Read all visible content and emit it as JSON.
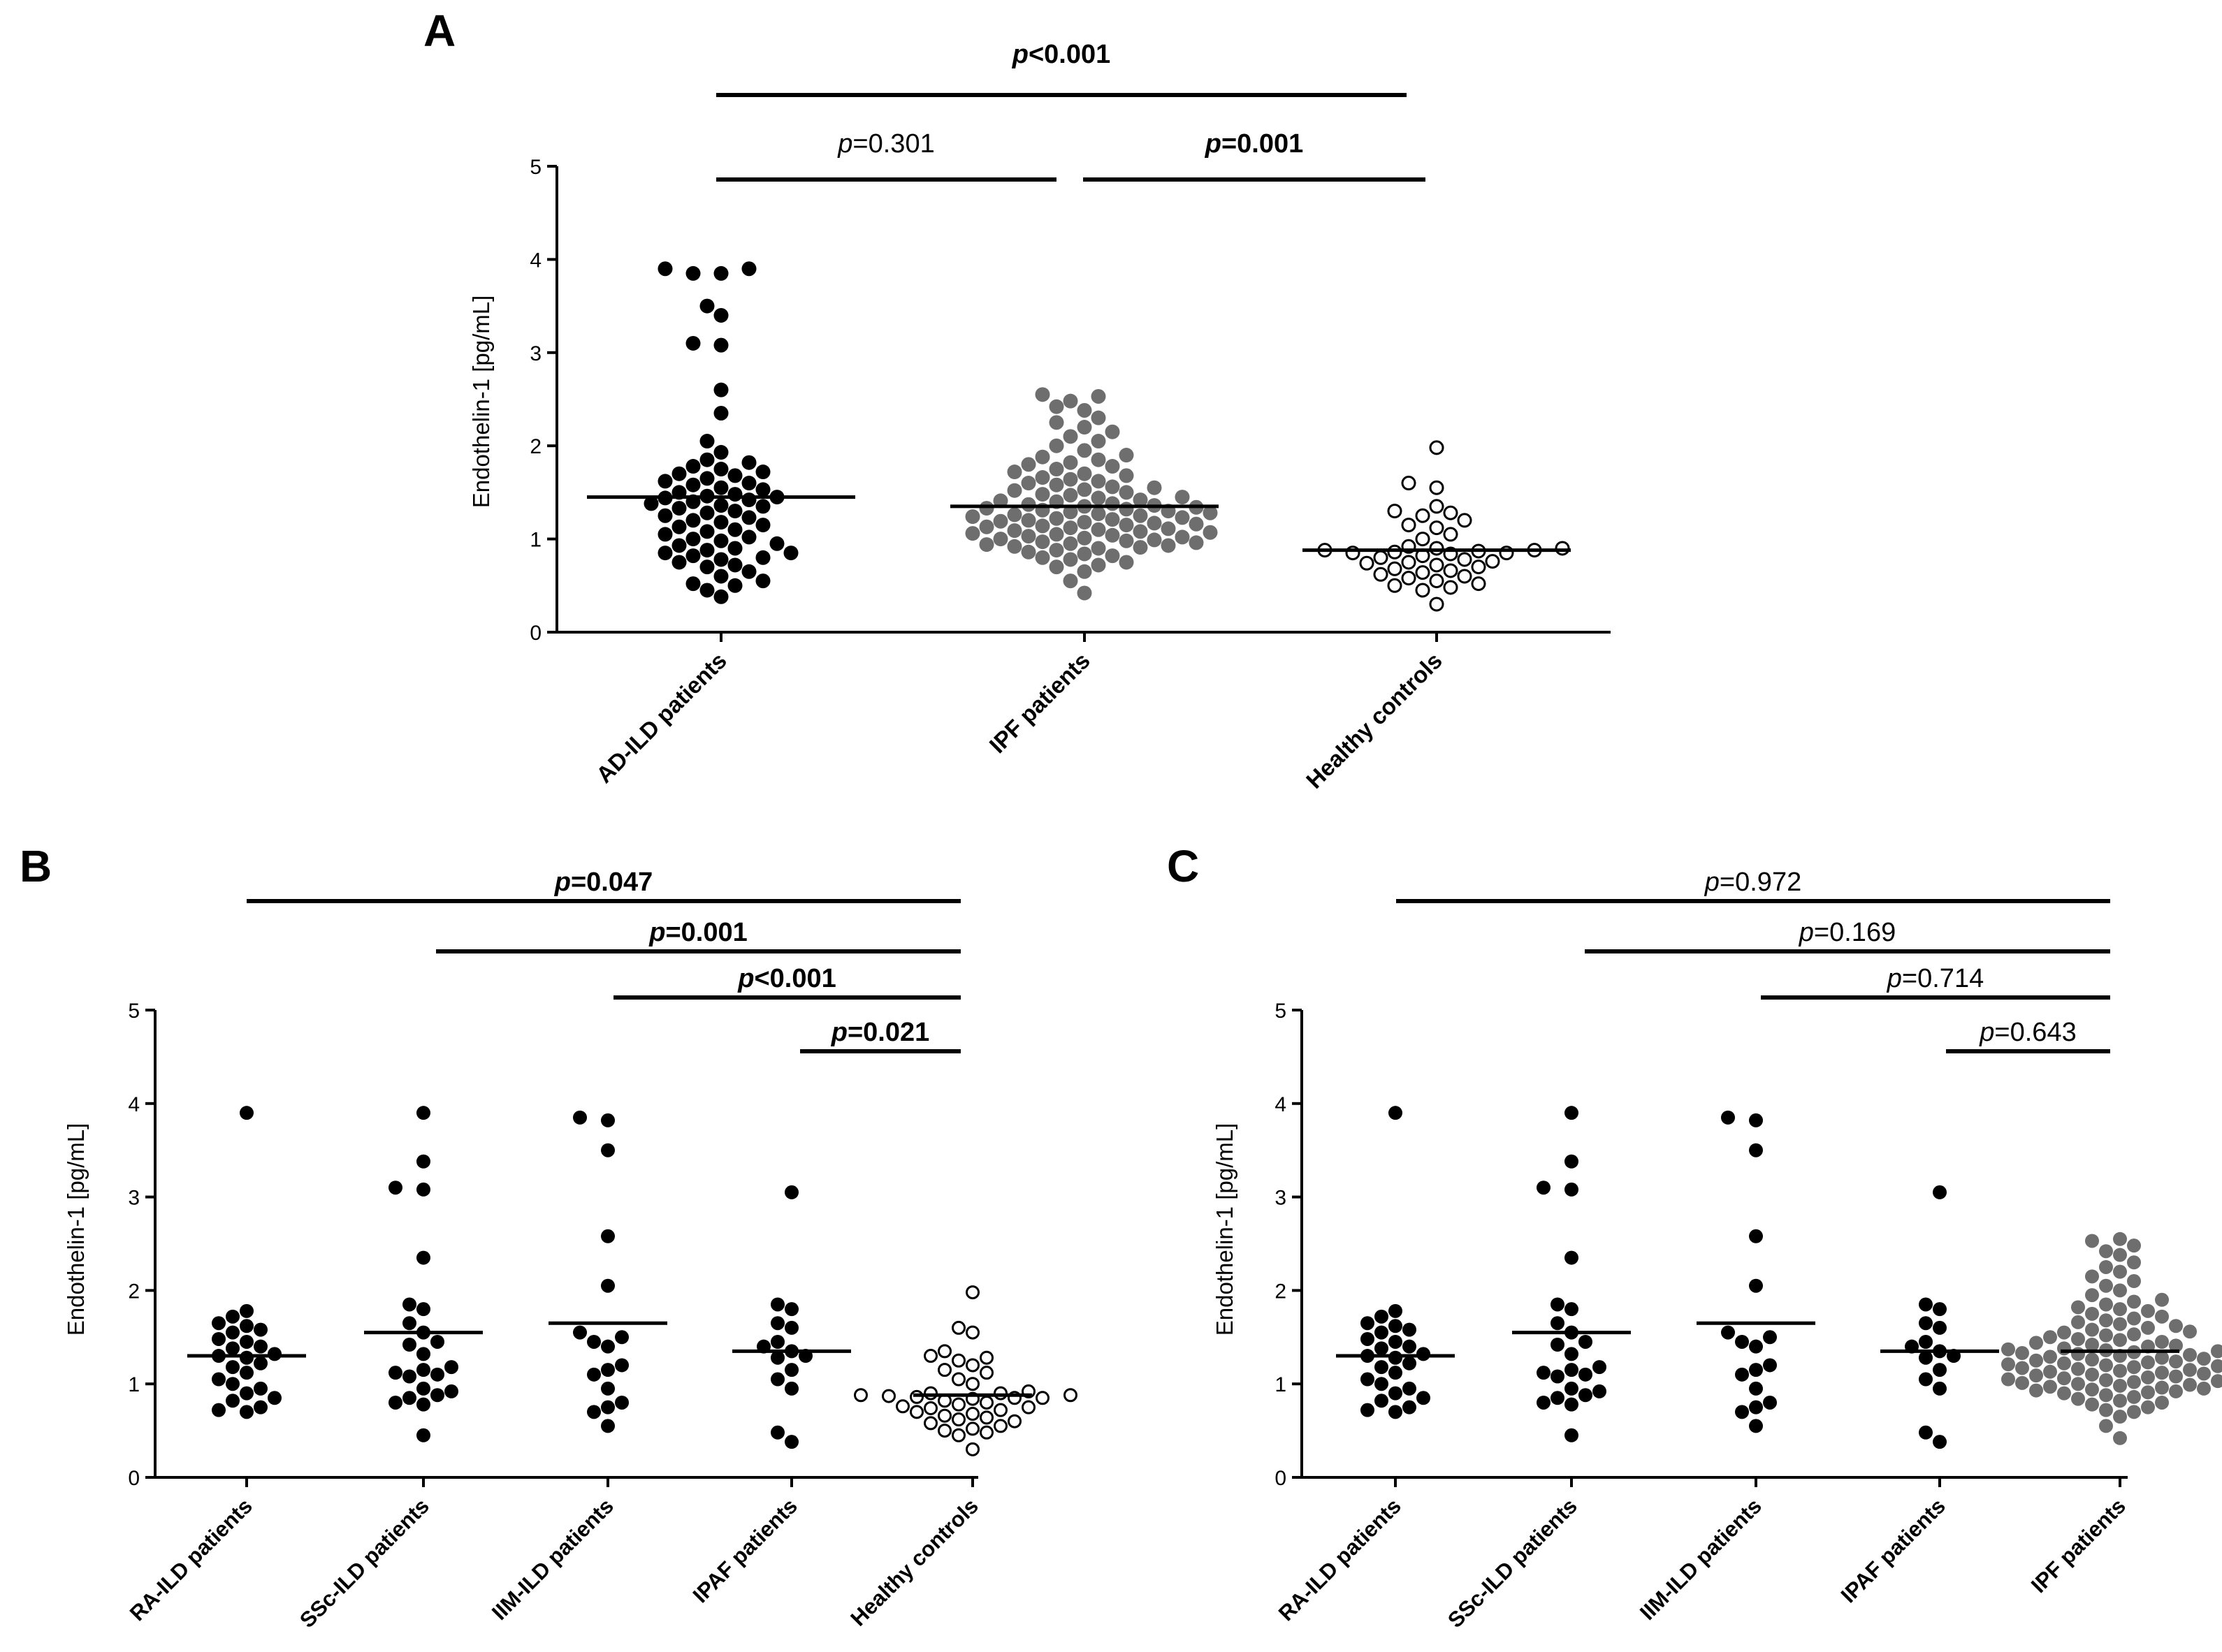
{
  "chart_data": [
    {
      "panel": "A",
      "type": "scatter",
      "ylabel": "Endothelin-1 [pg/mL]",
      "ylim": [
        0,
        5
      ],
      "yticks": [
        0,
        1,
        2,
        3,
        4,
        5
      ],
      "groups": [
        {
          "label": "AD-ILD patients",
          "marker": "filled-black",
          "median": 1.45,
          "values": [
            3.9,
            3.9,
            3.85,
            3.85,
            3.5,
            3.4,
            3.1,
            3.08,
            2.6,
            2.35,
            2.05,
            1.93,
            1.85,
            1.82,
            1.78,
            1.75,
            1.72,
            1.7,
            1.68,
            1.65,
            1.62,
            1.6,
            1.58,
            1.55,
            1.53,
            1.5,
            1.48,
            1.46,
            1.45,
            1.44,
            1.42,
            1.4,
            1.38,
            1.36,
            1.35,
            1.33,
            1.3,
            1.28,
            1.25,
            1.23,
            1.2,
            1.18,
            1.15,
            1.13,
            1.1,
            1.08,
            1.05,
            1.02,
            1.0,
            0.98,
            0.95,
            0.93,
            0.9,
            0.88,
            0.85,
            0.85,
            0.82,
            0.8,
            0.78,
            0.75,
            0.72,
            0.7,
            0.65,
            0.6,
            0.55,
            0.52,
            0.5,
            0.45,
            0.38
          ]
        },
        {
          "label": "IPF patients",
          "marker": "filled-gray",
          "median": 1.35,
          "values": [
            2.55,
            2.53,
            2.48,
            2.42,
            2.38,
            2.3,
            2.25,
            2.2,
            2.15,
            2.1,
            2.05,
            2.0,
            1.95,
            1.9,
            1.88,
            1.85,
            1.82,
            1.8,
            1.78,
            1.75,
            1.72,
            1.7,
            1.68,
            1.66,
            1.64,
            1.62,
            1.6,
            1.58,
            1.56,
            1.55,
            1.53,
            1.52,
            1.5,
            1.48,
            1.47,
            1.45,
            1.44,
            1.42,
            1.41,
            1.4,
            1.38,
            1.37,
            1.36,
            1.35,
            1.34,
            1.33,
            1.32,
            1.31,
            1.3,
            1.29,
            1.28,
            1.27,
            1.26,
            1.25,
            1.24,
            1.23,
            1.22,
            1.21,
            1.2,
            1.19,
            1.18,
            1.17,
            1.16,
            1.15,
            1.14,
            1.13,
            1.12,
            1.11,
            1.1,
            1.09,
            1.08,
            1.07,
            1.06,
            1.05,
            1.04,
            1.03,
            1.02,
            1.01,
            1.0,
            0.99,
            0.98,
            0.97,
            0.96,
            0.95,
            0.94,
            0.93,
            0.92,
            0.91,
            0.9,
            0.88,
            0.86,
            0.84,
            0.82,
            0.8,
            0.78,
            0.75,
            0.72,
            0.7,
            0.65,
            0.55,
            0.42
          ]
        },
        {
          "label": "Healthy controls",
          "marker": "open",
          "median": 0.88,
          "values": [
            1.98,
            1.6,
            1.55,
            1.35,
            1.3,
            1.28,
            1.25,
            1.2,
            1.15,
            1.12,
            1.05,
            1.0,
            0.92,
            0.9,
            0.9,
            0.88,
            0.88,
            0.87,
            0.86,
            0.85,
            0.85,
            0.84,
            0.82,
            0.8,
            0.78,
            0.76,
            0.75,
            0.74,
            0.72,
            0.7,
            0.68,
            0.66,
            0.64,
            0.62,
            0.6,
            0.58,
            0.55,
            0.52,
            0.5,
            0.48,
            0.45,
            0.3
          ]
        }
      ],
      "comparisons": [
        {
          "from": 0,
          "to": 2,
          "p_italic": "p",
          "p_rest": "<0.001",
          "bold": true
        },
        {
          "from": 0,
          "to": 1,
          "p_italic": "p",
          "p_rest": "=0.301",
          "bold": false
        },
        {
          "from": 1,
          "to": 2,
          "p_italic": "p",
          "p_rest": "=0.001",
          "bold": true
        }
      ]
    },
    {
      "panel": "B",
      "type": "scatter",
      "ylabel": "Endothelin-1 [pg/mL]",
      "ylim": [
        0,
        5
      ],
      "yticks": [
        0,
        1,
        2,
        3,
        4,
        5
      ],
      "groups": [
        {
          "label": "RA-ILD patients",
          "marker": "filled-black",
          "median": 1.3,
          "values": [
            3.9,
            1.78,
            1.72,
            1.65,
            1.62,
            1.58,
            1.55,
            1.48,
            1.45,
            1.4,
            1.38,
            1.32,
            1.3,
            1.28,
            1.22,
            1.18,
            1.12,
            1.05,
            1.0,
            0.95,
            0.9,
            0.85,
            0.82,
            0.75,
            0.72,
            0.7
          ]
        },
        {
          "label": "SSc-ILD patients",
          "marker": "filled-black",
          "median": 1.55,
          "values": [
            3.9,
            3.38,
            3.1,
            3.08,
            2.35,
            1.85,
            1.8,
            1.65,
            1.55,
            1.45,
            1.42,
            1.32,
            1.18,
            1.15,
            1.12,
            1.1,
            1.08,
            0.95,
            0.92,
            0.88,
            0.85,
            0.8,
            0.78,
            0.45
          ]
        },
        {
          "label": "IIM-ILD patients",
          "marker": "filled-black",
          "median": 1.65,
          "values": [
            3.85,
            3.82,
            3.5,
            2.58,
            2.05,
            1.55,
            1.5,
            1.45,
            1.4,
            1.2,
            1.15,
            1.1,
            0.95,
            0.8,
            0.75,
            0.7,
            0.55
          ]
        },
        {
          "label": "IPAF patients",
          "marker": "filled-black",
          "median": 1.35,
          "values": [
            3.05,
            1.85,
            1.8,
            1.65,
            1.6,
            1.45,
            1.4,
            1.35,
            1.3,
            1.28,
            1.15,
            1.05,
            0.95,
            0.48,
            0.38
          ]
        },
        {
          "label": "Healthy controls",
          "marker": "open",
          "median": 0.88,
          "values": [
            1.98,
            1.6,
            1.55,
            1.35,
            1.3,
            1.28,
            1.25,
            1.2,
            1.15,
            1.12,
            1.05,
            1.0,
            0.92,
            0.9,
            0.9,
            0.88,
            0.88,
            0.87,
            0.86,
            0.85,
            0.85,
            0.84,
            0.82,
            0.8,
            0.78,
            0.76,
            0.75,
            0.74,
            0.72,
            0.7,
            0.68,
            0.66,
            0.64,
            0.62,
            0.6,
            0.58,
            0.55,
            0.52,
            0.5,
            0.48,
            0.45,
            0.3
          ]
        }
      ],
      "comparisons": [
        {
          "from": 0,
          "to": 4,
          "p_italic": "p",
          "p_rest": "=0.047",
          "bold": true
        },
        {
          "from": 1,
          "to": 4,
          "p_italic": "p",
          "p_rest": "=0.001",
          "bold": true
        },
        {
          "from": 2,
          "to": 4,
          "p_italic": "p",
          "p_rest": "<0.001",
          "bold": true
        },
        {
          "from": 3,
          "to": 4,
          "p_italic": "p",
          "p_rest": "=0.021",
          "bold": true
        }
      ]
    },
    {
      "panel": "C",
      "type": "scatter",
      "ylabel": "Endothelin-1 [pg/mL]",
      "ylim": [
        0,
        5
      ],
      "yticks": [
        0,
        1,
        2,
        3,
        4,
        5
      ],
      "groups": [
        {
          "label": "RA-ILD patients",
          "marker": "filled-black",
          "median": 1.3,
          "values": [
            3.9,
            1.78,
            1.72,
            1.65,
            1.62,
            1.58,
            1.55,
            1.48,
            1.45,
            1.4,
            1.38,
            1.32,
            1.3,
            1.28,
            1.22,
            1.18,
            1.12,
            1.05,
            1.0,
            0.95,
            0.9,
            0.85,
            0.82,
            0.75,
            0.72,
            0.7
          ]
        },
        {
          "label": "SSc-ILD patients",
          "marker": "filled-black",
          "median": 1.55,
          "values": [
            3.9,
            3.38,
            3.1,
            3.08,
            2.35,
            1.85,
            1.8,
            1.65,
            1.55,
            1.45,
            1.42,
            1.32,
            1.18,
            1.15,
            1.12,
            1.1,
            1.08,
            0.95,
            0.92,
            0.88,
            0.85,
            0.8,
            0.78,
            0.45
          ]
        },
        {
          "label": "IIM-ILD patients",
          "marker": "filled-black",
          "median": 1.65,
          "values": [
            3.85,
            3.82,
            3.5,
            2.58,
            2.05,
            1.55,
            1.5,
            1.45,
            1.4,
            1.2,
            1.15,
            1.1,
            0.95,
            0.8,
            0.75,
            0.7,
            0.55
          ]
        },
        {
          "label": "IPAF patients",
          "marker": "filled-black",
          "median": 1.35,
          "values": [
            3.05,
            1.85,
            1.8,
            1.65,
            1.6,
            1.45,
            1.4,
            1.35,
            1.3,
            1.28,
            1.15,
            1.05,
            0.95,
            0.48,
            0.38
          ]
        },
        {
          "label": "IPF patients",
          "marker": "filled-gray",
          "median": 1.35,
          "values": [
            2.55,
            2.53,
            2.48,
            2.42,
            2.38,
            2.3,
            2.25,
            2.2,
            2.15,
            2.1,
            2.05,
            2.0,
            1.95,
            1.9,
            1.88,
            1.85,
            1.82,
            1.8,
            1.78,
            1.75,
            1.72,
            1.7,
            1.68,
            1.66,
            1.64,
            1.62,
            1.6,
            1.58,
            1.56,
            1.55,
            1.53,
            1.52,
            1.5,
            1.48,
            1.47,
            1.45,
            1.44,
            1.42,
            1.41,
            1.4,
            1.38,
            1.37,
            1.36,
            1.35,
            1.34,
            1.33,
            1.32,
            1.31,
            1.3,
            1.29,
            1.28,
            1.27,
            1.26,
            1.25,
            1.24,
            1.23,
            1.22,
            1.21,
            1.2,
            1.19,
            1.18,
            1.17,
            1.16,
            1.15,
            1.14,
            1.13,
            1.12,
            1.11,
            1.1,
            1.09,
            1.08,
            1.07,
            1.06,
            1.05,
            1.04,
            1.03,
            1.02,
            1.01,
            1.0,
            0.99,
            0.98,
            0.97,
            0.96,
            0.95,
            0.94,
            0.93,
            0.92,
            0.91,
            0.9,
            0.88,
            0.86,
            0.84,
            0.82,
            0.8,
            0.78,
            0.75,
            0.72,
            0.7,
            0.65,
            0.55,
            0.42
          ]
        }
      ],
      "comparisons": [
        {
          "from": 0,
          "to": 4,
          "p_italic": "p",
          "p_rest": "=0.972",
          "bold": false
        },
        {
          "from": 1,
          "to": 4,
          "p_italic": "p",
          "p_rest": "=0.169",
          "bold": false
        },
        {
          "from": 2,
          "to": 4,
          "p_italic": "p",
          "p_rest": "=0.714",
          "bold": false
        },
        {
          "from": 3,
          "to": 4,
          "p_italic": "p",
          "p_rest": "=0.643",
          "bold": false
        }
      ]
    }
  ],
  "colors": {
    "black": "#000000",
    "gray": "#6e6e6e",
    "open_fill": "#ffffff"
  }
}
